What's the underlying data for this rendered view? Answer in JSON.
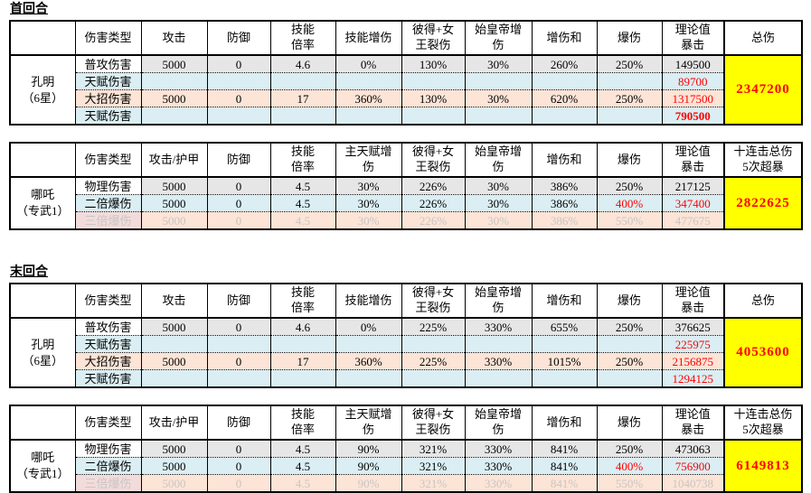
{
  "colors": {
    "row_grey": "#e7e6e6",
    "row_blue": "#daeef3",
    "row_peach": "#fce4d6",
    "label_pink": "#f2dcdb",
    "total_yellow": "#ffff00",
    "value_red": "#ff0000",
    "muted_grey": "#c8c5c5"
  },
  "sections": [
    {
      "title": "首回合"
    },
    {
      "title": "末回合"
    }
  ],
  "tables": [
    {
      "group_label": "孔明\n（6星）",
      "headers": [
        "",
        "伤害类型",
        "攻击",
        "防御",
        "技能\n倍率",
        "技能增伤",
        "彼得+女\n王裂伤",
        "始皇帝增\n伤",
        "增伤和",
        "爆伤",
        "理论值\n暴击",
        "总伤"
      ],
      "rows": [
        {
          "label": "普攻伤害",
          "bg": "grey",
          "label_bg": "white",
          "cells": [
            "5000",
            "0",
            "4.6",
            "0%",
            "130%",
            "30%",
            "260%",
            "250%",
            "149500"
          ]
        },
        {
          "label": "天赋伤害",
          "bg": "blue",
          "label_bg": "blue",
          "cells": [
            "",
            "",
            "",
            "",
            "",
            "",
            "",
            "",
            {
              "t": "89700",
              "c": "red"
            }
          ]
        },
        {
          "label": "大招伤害",
          "bg": "peach",
          "label_bg": "peach",
          "cells": [
            "5000",
            "0",
            "17",
            "360%",
            "130%",
            "30%",
            "620%",
            "250%",
            {
              "t": "1317500",
              "c": "red"
            }
          ]
        },
        {
          "label": "天赋伤害",
          "bg": "blue",
          "label_bg": "blue",
          "cells": [
            "",
            "",
            "",
            "",
            "",
            "",
            "",
            "",
            {
              "t": "790500",
              "c": "red",
              "bold": true
            }
          ]
        }
      ],
      "total": "2347200"
    },
    {
      "group_label": "哪吒\n（专武1）",
      "headers": [
        "",
        "伤害类型",
        "攻击/护甲",
        "防御",
        "技能\n倍率",
        "主天赋增\n伤",
        "彼得+女\n王裂伤",
        "始皇帝增\n伤",
        "增伤和",
        "爆伤",
        "理论值\n暴击",
        "十连击总伤\n5次超暴"
      ],
      "rows": [
        {
          "label": "物理伤害",
          "bg": "grey",
          "label_bg": "white",
          "cells": [
            "5000",
            "0",
            "4.5",
            "30%",
            "226%",
            "30%",
            "386%",
            "250%",
            "217125"
          ]
        },
        {
          "label": "二倍爆伤",
          "bg": "blue",
          "label_bg": "blue",
          "cells": [
            "5000",
            "0",
            "4.5",
            "30%",
            "226%",
            "30%",
            "386%",
            {
              "t": "400%",
              "c": "red"
            },
            {
              "t": "347400",
              "c": "red"
            }
          ]
        },
        {
          "label": "三倍爆伤",
          "bg": "peach",
          "label_bg": "pink",
          "muted": true,
          "cells": [
            "5000",
            "0",
            "4.5",
            "30%",
            "226%",
            "30%",
            "386%",
            "550%",
            "477675"
          ]
        }
      ],
      "total": "2822625"
    },
    {
      "group_label": "孔明\n（6星）",
      "headers": [
        "",
        "伤害类型",
        "攻击",
        "防御",
        "技能\n倍率",
        "技能增伤",
        "彼得+女\n王裂伤",
        "始皇帝增\n伤",
        "增伤和",
        "爆伤",
        "理论值\n暴击",
        "总伤"
      ],
      "rows": [
        {
          "label": "普攻伤害",
          "bg": "grey",
          "label_bg": "white",
          "cells": [
            "5000",
            "0",
            "4.6",
            "0%",
            "225%",
            "330%",
            "655%",
            "250%",
            "376625"
          ]
        },
        {
          "label": "天赋伤害",
          "bg": "blue",
          "label_bg": "blue",
          "cells": [
            "",
            "",
            "",
            "",
            "",
            "",
            "",
            "",
            {
              "t": "225975",
              "c": "red"
            }
          ]
        },
        {
          "label": "大招伤害",
          "bg": "peach",
          "label_bg": "peach",
          "cells": [
            "5000",
            "0",
            "17",
            "360%",
            "225%",
            "330%",
            "1015%",
            "250%",
            {
              "t": "2156875",
              "c": "red"
            }
          ]
        },
        {
          "label": "天赋伤害",
          "bg": "blue",
          "label_bg": "blue",
          "cells": [
            "",
            "",
            "",
            "",
            "",
            "",
            "",
            "",
            {
              "t": "1294125",
              "c": "red"
            }
          ]
        }
      ],
      "total": "4053600"
    },
    {
      "group_label": "哪吒\n（专武1）",
      "headers": [
        "",
        "伤害类型",
        "攻击/护甲",
        "防御",
        "技能\n倍率",
        "主天赋增\n伤",
        "彼得+女\n王裂伤",
        "始皇帝增\n伤",
        "增伤和",
        "爆伤",
        "理论值\n暴击",
        "十连击总伤\n5次超暴"
      ],
      "rows": [
        {
          "label": "物理伤害",
          "bg": "grey",
          "label_bg": "white",
          "cells": [
            "5000",
            "0",
            "4.5",
            "90%",
            "321%",
            "330%",
            "841%",
            "250%",
            "473063"
          ]
        },
        {
          "label": "二倍爆伤",
          "bg": "blue",
          "label_bg": "blue",
          "cells": [
            "5000",
            "0",
            "4.5",
            "90%",
            "321%",
            "330%",
            "841%",
            {
              "t": "400%",
              "c": "red"
            },
            {
              "t": "756900",
              "c": "red"
            }
          ]
        },
        {
          "label": "三倍爆伤",
          "bg": "peach",
          "label_bg": "pink",
          "muted": true,
          "cells": [
            "5000",
            "0",
            "4.5",
            "90%",
            "321%",
            "330%",
            "841%",
            "550%",
            "1040738"
          ]
        }
      ],
      "total": "6149813"
    }
  ]
}
